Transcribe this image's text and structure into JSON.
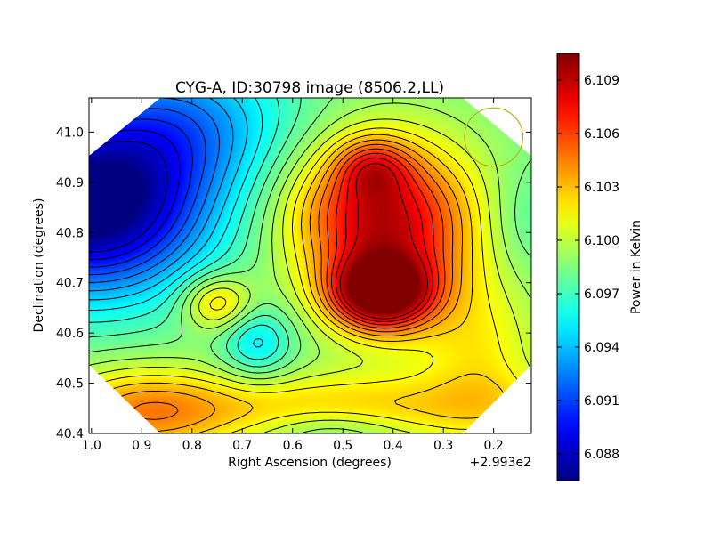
{
  "chart_data": {
    "type": "heatmap",
    "title": "CYG-A, ID:30798 image (8506.2,LL)",
    "xlabel": "Right Ascension (degrees)",
    "ylabel": "Declination (degrees)",
    "x_offset_label": "+2.993e2",
    "xlim": [
      1.005,
      0.125
    ],
    "ylim": [
      40.4,
      41.068
    ],
    "x_ticks": [
      1.0,
      0.9,
      0.8,
      0.7,
      0.6,
      0.5,
      0.4,
      0.3,
      0.2
    ],
    "x_tick_labels": [
      "1.0",
      "0.9",
      "0.8",
      "0.7",
      "0.6",
      "0.5",
      "0.4",
      "0.3",
      "0.2"
    ],
    "y_ticks": [
      40.4,
      40.5,
      40.6,
      40.7,
      40.8,
      40.9,
      41.0
    ],
    "y_tick_labels": [
      "40.4",
      "40.5",
      "40.6",
      "40.7",
      "40.8",
      "40.9",
      "41.0"
    ],
    "colorbar": {
      "label": "Power in Kelvin",
      "range": [
        6.0865,
        6.1105
      ],
      "ticks": [
        6.088,
        6.091,
        6.094,
        6.097,
        6.1,
        6.103,
        6.106,
        6.109
      ],
      "tick_labels": [
        "6.088",
        "6.091",
        "6.094",
        "6.097",
        "6.100",
        "6.103",
        "6.106",
        "6.109"
      ],
      "colormap": "jet"
    },
    "background_value": 6.0985,
    "features": [
      {
        "type": "peak",
        "ra": 0.425,
        "dec": 40.68,
        "amplitude": 0.0115,
        "sigma_ra": 0.07,
        "sigma_dec": 0.05
      },
      {
        "type": "peak",
        "ra": 0.44,
        "dec": 40.84,
        "amplitude": 0.0075,
        "sigma_ra": 0.12,
        "sigma_dec": 0.1
      },
      {
        "type": "peak",
        "ra": 0.44,
        "dec": 40.93,
        "amplitude": 0.004,
        "sigma_ra": 0.05,
        "sigma_dec": 0.04
      },
      {
        "type": "peak",
        "ra": 0.37,
        "dec": 40.76,
        "amplitude": 0.004,
        "sigma_ra": 0.13,
        "sigma_dec": 0.14
      },
      {
        "type": "peak",
        "ra": 0.52,
        "dec": 40.45,
        "amplitude": 0.004,
        "sigma_ra": 0.35,
        "sigma_dec": 0.05
      },
      {
        "type": "peak",
        "ra": 0.75,
        "dec": 40.66,
        "amplitude": 0.0045,
        "sigma_ra": 0.05,
        "sigma_dec": 0.04
      },
      {
        "type": "peak",
        "ra": 0.9,
        "dec": 40.44,
        "amplitude": 0.004,
        "sigma_ra": 0.12,
        "sigma_dec": 0.07
      },
      {
        "type": "peak",
        "ra": 0.22,
        "dec": 40.55,
        "amplitude": 0.0025,
        "sigma_ra": 0.08,
        "sigma_dec": 0.1
      },
      {
        "type": "dip",
        "ra": 1.0,
        "dec": 40.85,
        "amplitude": 0.013,
        "sigma_ra": 0.16,
        "sigma_dec": 0.12
      },
      {
        "type": "dip",
        "ra": 0.82,
        "dec": 41.02,
        "amplitude": 0.005,
        "sigma_ra": 0.15,
        "sigma_dec": 0.1
      },
      {
        "type": "dip",
        "ra": 0.67,
        "dec": 40.58,
        "amplitude": 0.0035,
        "sigma_ra": 0.05,
        "sigma_dec": 0.05
      },
      {
        "type": "dip",
        "ra": 0.52,
        "dec": 40.41,
        "amplitude": 0.002,
        "sigma_ra": 0.1,
        "sigma_dec": 0.03
      },
      {
        "type": "dip",
        "ra": 0.14,
        "dec": 40.82,
        "amplitude": 0.0015,
        "sigma_ra": 0.06,
        "sigma_dec": 0.08
      }
    ],
    "contour_levels": [
      6.0885,
      6.0895,
      6.0905,
      6.0915,
      6.0925,
      6.0935,
      6.0945,
      6.0955,
      6.0965,
      6.0975,
      6.0985,
      6.0995,
      6.1005,
      6.1015,
      6.1025,
      6.1035,
      6.1045,
      6.1055,
      6.1065,
      6.1075,
      6.1085
    ],
    "beam_circle": {
      "ra": 0.2,
      "dec": 40.99,
      "radius_deg": 0.058,
      "color": "#b5b51e"
    },
    "footprint": "octagon (corners cut at 45°)"
  }
}
